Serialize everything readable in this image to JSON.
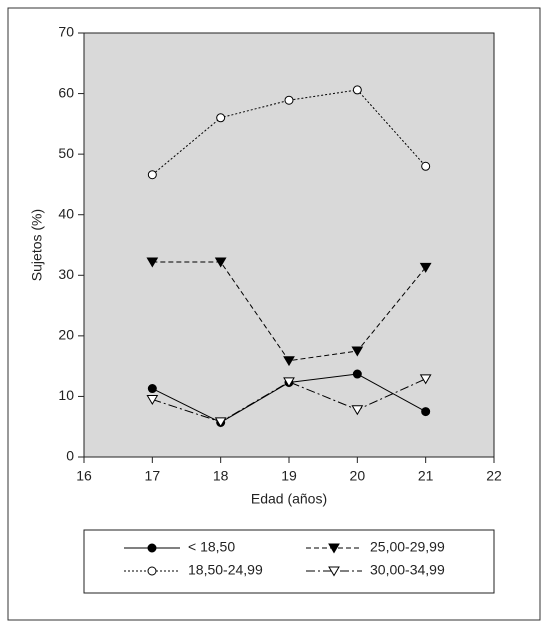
{
  "chart_data": {
    "type": "line",
    "xlabel": "Edad (años)",
    "ylabel": "Sujetos (%)",
    "x": [
      17,
      18,
      19,
      20,
      21
    ],
    "series": [
      {
        "name": "< 18,50",
        "color": "#000000",
        "marker": "circle-filled",
        "dash": "solid",
        "values": [
          11.3,
          5.7,
          12.3,
          13.7,
          7.5
        ]
      },
      {
        "name": "18,50-24,99",
        "color": "#000000",
        "marker": "circle-open",
        "dash": "dotted",
        "values": [
          46.6,
          56,
          58.9,
          60.6,
          48
        ]
      },
      {
        "name": "25,00-29,99",
        "color": "#000000",
        "marker": "triangle-down-filled",
        "dash": "dashed",
        "values": [
          32.2,
          32.2,
          15.9,
          17.5,
          31.3
        ]
      },
      {
        "name": "30,00-34,99",
        "color": "#000000",
        "marker": "triangle-down-open",
        "dash": "dashdot",
        "values": [
          9.5,
          5.8,
          12.4,
          7.8,
          12.9
        ]
      }
    ],
    "xlim": [
      16,
      22
    ],
    "xticks": [
      16,
      17,
      18,
      19,
      20,
      21,
      22
    ],
    "ylim": [
      0,
      70
    ],
    "yticks": [
      0,
      10,
      20,
      30,
      40,
      50,
      60,
      70
    ],
    "plot_background": "#d9d9d9"
  }
}
